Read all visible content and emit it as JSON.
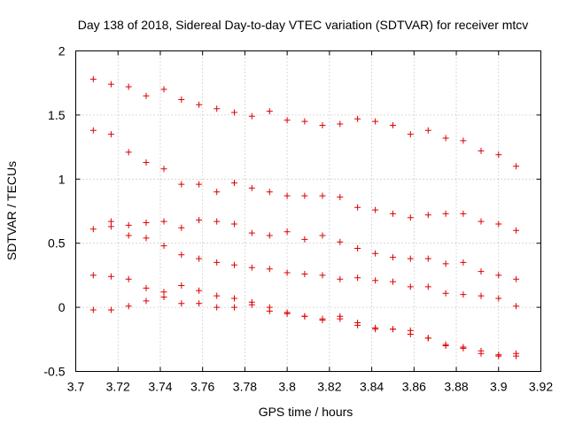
{
  "chart_data": {
    "type": "scatter",
    "title": "Day 138 of 2018, Sidereal Day-to-day VTEC variation (SDTVAR) for receiver mtcv",
    "xlabel": "GPS time / hours",
    "ylabel": "SDTVAR / TECUs",
    "xlim": [
      3.7,
      3.92
    ],
    "ylim": [
      -0.5,
      2
    ],
    "xticks": [
      "3.7",
      "3.72",
      "3.74",
      "3.76",
      "3.78",
      "3.8",
      "3.82",
      "3.84",
      "3.86",
      "3.88",
      "3.9",
      "3.92"
    ],
    "xtick_values": [
      3.7,
      3.72,
      3.74,
      3.76,
      3.78,
      3.8,
      3.82,
      3.84,
      3.86,
      3.88,
      3.9,
      3.92
    ],
    "yticks": [
      "-0.5",
      "0",
      "0.5",
      "1",
      "1.5",
      "2"
    ],
    "ytick_values": [
      -0.5,
      0,
      0.5,
      1,
      1.5,
      2
    ],
    "grid": true,
    "marker": "+",
    "color": "#dd0000",
    "points": [
      [
        3.7083,
        1.78
      ],
      [
        3.7167,
        1.74
      ],
      [
        3.725,
        1.72
      ],
      [
        3.7333,
        1.65
      ],
      [
        3.7417,
        1.7
      ],
      [
        3.75,
        1.62
      ],
      [
        3.7583,
        1.58
      ],
      [
        3.7667,
        1.55
      ],
      [
        3.775,
        1.52
      ],
      [
        3.7833,
        1.49
      ],
      [
        3.7917,
        1.53
      ],
      [
        3.8,
        1.46
      ],
      [
        3.8083,
        1.45
      ],
      [
        3.8167,
        1.42
      ],
      [
        3.825,
        1.43
      ],
      [
        3.8333,
        1.47
      ],
      [
        3.8417,
        1.45
      ],
      [
        3.85,
        1.42
      ],
      [
        3.8583,
        1.35
      ],
      [
        3.8667,
        1.38
      ],
      [
        3.875,
        1.32
      ],
      [
        3.8833,
        1.3
      ],
      [
        3.8917,
        1.22
      ],
      [
        3.9,
        1.19
      ],
      [
        3.9083,
        1.1
      ],
      [
        3.7083,
        1.38
      ],
      [
        3.7167,
        1.35
      ],
      [
        3.725,
        1.21
      ],
      [
        3.7333,
        1.13
      ],
      [
        3.7417,
        1.08
      ],
      [
        3.75,
        0.96
      ],
      [
        3.7583,
        0.96
      ],
      [
        3.7667,
        0.9
      ],
      [
        3.775,
        0.97
      ],
      [
        3.7833,
        0.93
      ],
      [
        3.7917,
        0.9
      ],
      [
        3.8,
        0.87
      ],
      [
        3.8083,
        0.87
      ],
      [
        3.8167,
        0.87
      ],
      [
        3.825,
        0.86
      ],
      [
        3.8333,
        0.78
      ],
      [
        3.8417,
        0.76
      ],
      [
        3.85,
        0.73
      ],
      [
        3.8583,
        0.7
      ],
      [
        3.8667,
        0.72
      ],
      [
        3.875,
        0.73
      ],
      [
        3.8833,
        0.73
      ],
      [
        3.8917,
        0.67
      ],
      [
        3.9,
        0.65
      ],
      [
        3.9083,
        0.6
      ],
      [
        3.7083,
        0.61
      ],
      [
        3.7167,
        0.67
      ],
      [
        3.725,
        0.64
      ],
      [
        3.7333,
        0.66
      ],
      [
        3.7417,
        0.67
      ],
      [
        3.75,
        0.62
      ],
      [
        3.7583,
        0.68
      ],
      [
        3.7667,
        0.67
      ],
      [
        3.775,
        0.65
      ],
      [
        3.7833,
        0.58
      ],
      [
        3.7917,
        0.56
      ],
      [
        3.8,
        0.59
      ],
      [
        3.8083,
        0.53
      ],
      [
        3.8167,
        0.56
      ],
      [
        3.825,
        0.51
      ],
      [
        3.8333,
        0.46
      ],
      [
        3.8417,
        0.42
      ],
      [
        3.85,
        0.39
      ],
      [
        3.8583,
        0.38
      ],
      [
        3.8667,
        0.38
      ],
      [
        3.875,
        0.34
      ],
      [
        3.8833,
        0.35
      ],
      [
        3.8917,
        0.28
      ],
      [
        3.9,
        0.25
      ],
      [
        3.9083,
        0.22
      ],
      [
        3.7167,
        0.63
      ],
      [
        3.725,
        0.56
      ],
      [
        3.7333,
        0.54
      ],
      [
        3.7417,
        0.48
      ],
      [
        3.75,
        0.41
      ],
      [
        3.7583,
        0.38
      ],
      [
        3.7667,
        0.35
      ],
      [
        3.775,
        0.33
      ],
      [
        3.7833,
        0.31
      ],
      [
        3.7917,
        0.3
      ],
      [
        3.8,
        0.27
      ],
      [
        3.8083,
        0.26
      ],
      [
        3.8167,
        0.25
      ],
      [
        3.825,
        0.22
      ],
      [
        3.8333,
        0.23
      ],
      [
        3.8417,
        0.21
      ],
      [
        3.85,
        0.2
      ],
      [
        3.8583,
        0.16
      ],
      [
        3.8667,
        0.16
      ],
      [
        3.875,
        0.11
      ],
      [
        3.8833,
        0.1
      ],
      [
        3.8917,
        0.09
      ],
      [
        3.9,
        0.07
      ],
      [
        3.9083,
        0.01
      ],
      [
        3.7083,
        0.25
      ],
      [
        3.7167,
        0.24
      ],
      [
        3.725,
        0.22
      ],
      [
        3.7333,
        0.15
      ],
      [
        3.7417,
        0.12
      ],
      [
        3.75,
        0.17
      ],
      [
        3.7583,
        0.13
      ],
      [
        3.7667,
        0.09
      ],
      [
        3.775,
        0.07
      ],
      [
        3.7833,
        0.04
      ],
      [
        3.7917,
        0.0
      ],
      [
        3.8,
        -0.04
      ],
      [
        3.8083,
        -0.07
      ],
      [
        3.8167,
        -0.09
      ],
      [
        3.825,
        -0.09
      ],
      [
        3.8333,
        -0.12
      ],
      [
        3.8417,
        -0.16
      ],
      [
        3.85,
        -0.17
      ],
      [
        3.8583,
        -0.21
      ],
      [
        3.8667,
        -0.24
      ],
      [
        3.875,
        -0.29
      ],
      [
        3.8833,
        -0.32
      ],
      [
        3.8917,
        -0.36
      ],
      [
        3.9,
        -0.37
      ],
      [
        3.9083,
        -0.38
      ],
      [
        3.7083,
        -0.02
      ],
      [
        3.7167,
        -0.02
      ],
      [
        3.725,
        0.01
      ],
      [
        3.7333,
        0.05
      ],
      [
        3.7417,
        0.08
      ],
      [
        3.75,
        0.03
      ],
      [
        3.7583,
        0.03
      ],
      [
        3.7667,
        0.0
      ],
      [
        3.775,
        0.0
      ],
      [
        3.7833,
        0.02
      ],
      [
        3.7917,
        -0.03
      ],
      [
        3.8,
        -0.05
      ],
      [
        3.8083,
        -0.07
      ],
      [
        3.8167,
        -0.1
      ],
      [
        3.825,
        -0.07
      ],
      [
        3.8333,
        -0.14
      ],
      [
        3.8417,
        -0.17
      ],
      [
        3.85,
        -0.17
      ],
      [
        3.8583,
        -0.18
      ],
      [
        3.8667,
        -0.24
      ],
      [
        3.875,
        -0.3
      ],
      [
        3.8833,
        -0.31
      ],
      [
        3.8917,
        -0.34
      ],
      [
        3.9,
        -0.38
      ],
      [
        3.9083,
        -0.36
      ]
    ]
  }
}
